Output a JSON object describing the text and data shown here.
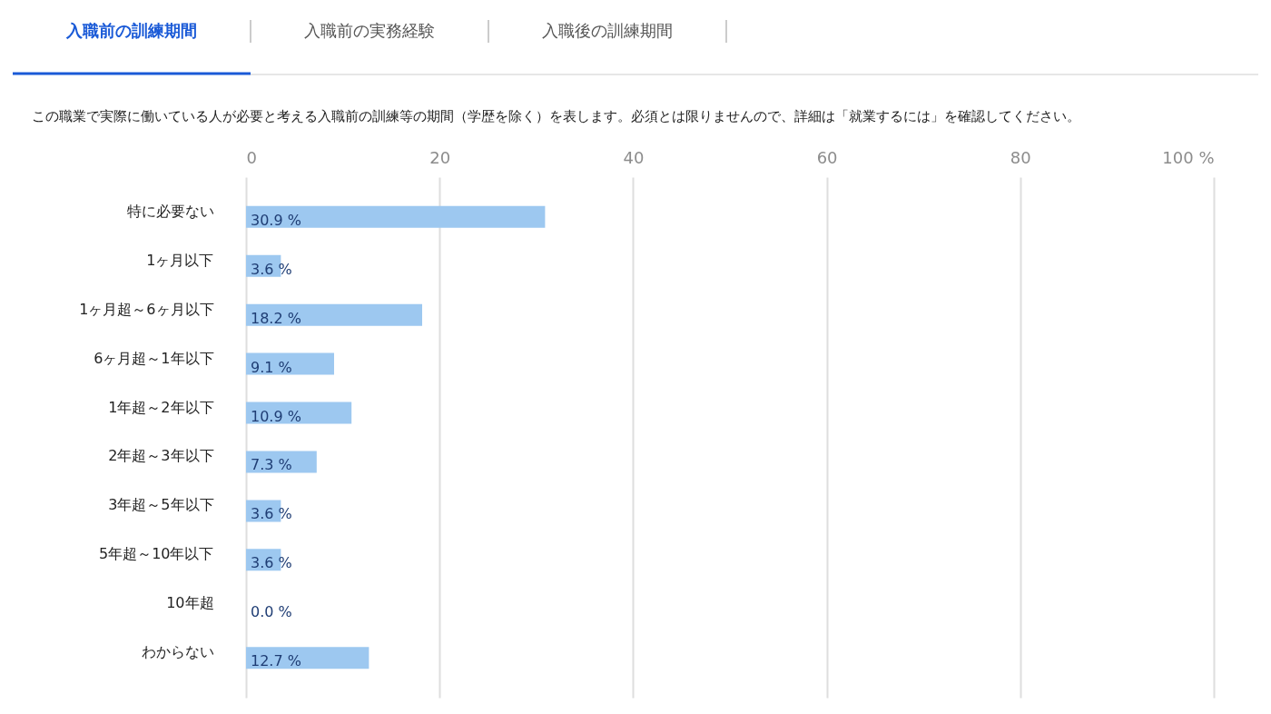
{
  "chart_data": {
    "type": "bar",
    "orientation": "horizontal",
    "title": "入職前の訓練期間",
    "subtitle": "この職業で実際に働いている人が必要と考える入職前の訓練等の期間（学歴を除く）を表します。必須とは限りませんので、詳細は「就業するには」を確認してください。",
    "annotations": [
      "入職前の実務経験",
      "入職後の訓練期間"
    ],
    "categories": [
      "特に必要ない",
      "1ヶ月以下",
      "1ヶ月超～6ヶ月以下",
      "6ヶ月超～1年以下",
      "1年超～2年以下",
      "2年超～3年以下",
      "3年超～5年以下",
      "5年超～10年以下",
      "10年超",
      "わからない"
    ],
    "values": [
      30.9,
      3.6,
      18.2,
      9.1,
      10.9,
      7.3,
      3.6,
      3.6,
      0.0,
      12.7
    ],
    "value_labels": [
      "30.9 %",
      "3.6 %",
      "18.2 %",
      "9.1 %",
      "10.9 %",
      "7.3 %",
      "3.6 %",
      "3.6 %",
      "0.0 %",
      "12.7 %"
    ],
    "color": "#9dc8f0",
    "xlim": [
      0,
      100
    ],
    "xticks": [
      0,
      20,
      40,
      60,
      80,
      {
        "value": 100,
        "label": "100 %"
      }
    ],
    "grid": "x"
  }
}
